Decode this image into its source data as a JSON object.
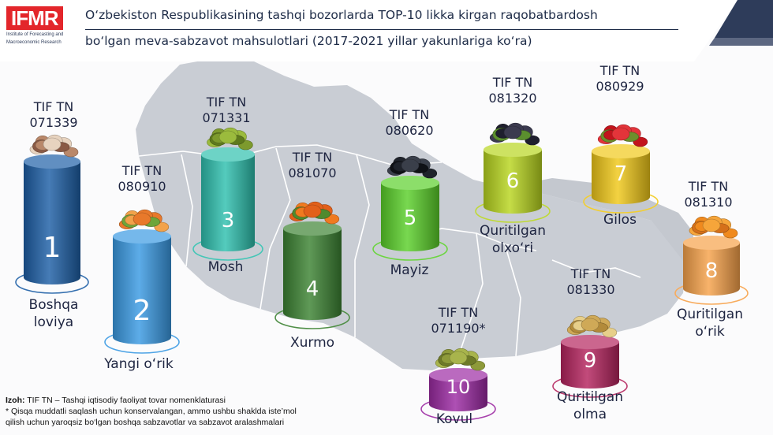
{
  "logo": {
    "name": "IFMR",
    "subtitle_1": "Institute of Forecasting and",
    "subtitle_2": "Macroeconomic Research"
  },
  "title": {
    "line1": "O‘zbekiston Respublikasining tashqi bozorlarda TOP-10 likka kirgan raqobatbardosh",
    "line2": "bo‘lgan meva-sabzavot mahsulotlari (2017-2021 yillar yakunlariga ko‘ra)"
  },
  "items": [
    {
      "rank": "1",
      "code_label": "TIF TN",
      "code": "071339",
      "name_1": "Boshqa",
      "name_2": "loviya",
      "color": "#1d5fa6",
      "product_icon": "beans-icon"
    },
    {
      "rank": "2",
      "code_label": "TIF TN",
      "code": "080910",
      "name_1": "Yangi o‘rik",
      "name_2": "",
      "color": "#3a9ae3",
      "product_icon": "apricot-icon"
    },
    {
      "rank": "3",
      "code_label": "TIF TN",
      "code": "071331",
      "name_1": "Mosh",
      "name_2": "",
      "color": "#2ec0ae",
      "product_icon": "mung-bean-icon"
    },
    {
      "rank": "4",
      "code_label": "TIF TN",
      "code": "081070",
      "name_1": "Xurmo",
      "name_2": "",
      "color": "#3c8232",
      "product_icon": "persimmon-icon"
    },
    {
      "rank": "5",
      "code_label": "TIF TN",
      "code": "080620",
      "name_1": "Mayiz",
      "name_2": "",
      "color": "#5ad02a",
      "product_icon": "raisin-icon"
    },
    {
      "rank": "6",
      "code_label": "TIF TN",
      "code": "081320",
      "name_1": "Quritilgan",
      "name_2": "olxo‘ri",
      "color": "#b8d51e",
      "product_icon": "prune-icon"
    },
    {
      "rank": "7",
      "code_label": "TIF TN",
      "code": "080929",
      "name_1": "Gilos",
      "name_2": "",
      "color": "#f0c819",
      "product_icon": "cherry-icon"
    },
    {
      "rank": "8",
      "code_label": "TIF TN",
      "code": "081310",
      "name_1": "Quritilgan",
      "name_2": "o‘rik",
      "color": "#f7a24a",
      "product_icon": "dried-apricot-icon"
    },
    {
      "rank": "9",
      "code_label": "TIF TN",
      "code": "081330",
      "name_1": "Quritilgan",
      "name_2": "olma",
      "color": "#b5245e",
      "product_icon": "dried-apple-icon"
    },
    {
      "rank": "10",
      "code_label": "TIF TN",
      "code": "071190*",
      "name_1": "Kovul",
      "name_2": "",
      "color": "#9c2aa3",
      "product_icon": "caper-icon"
    }
  ],
  "notes": {
    "izoh_label": "Izoh:",
    "line1": "TIF TN – Tashqi iqtisodiy faoliyat tovar nomenklaturasi",
    "line2": "* Qisqa muddatli saqlash uchun konservalangan, ammo ushbu shaklda iste’mol",
    "line3": "qilish uchun yaroqsiz bo‘lgan boshqa sabzavotlar va sabzavot aralashmalari"
  }
}
